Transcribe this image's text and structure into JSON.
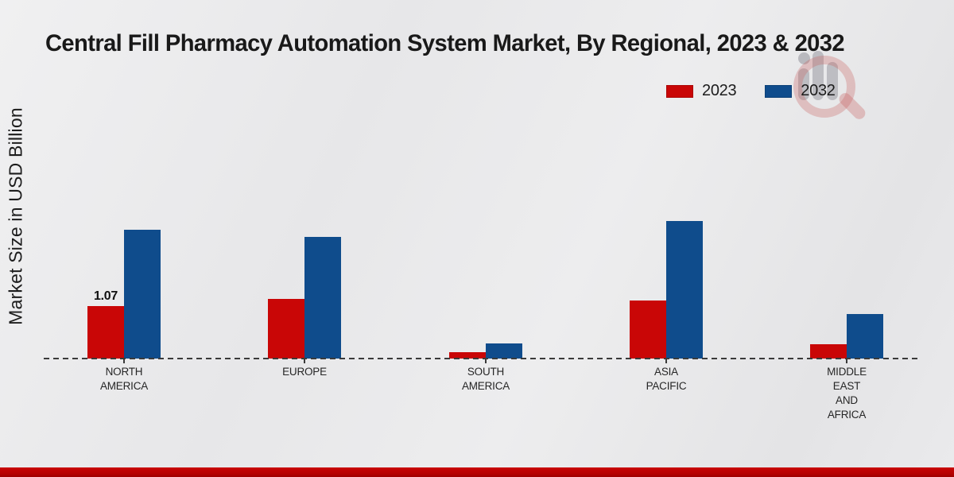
{
  "title": "Central Fill Pharmacy Automation System Market, By Regional, 2023 & 2032",
  "y_axis_label": "Market Size in USD Billion",
  "legend": {
    "position": "top-right",
    "items": [
      {
        "label": "2023",
        "color": "#c90606"
      },
      {
        "label": "2032",
        "color": "#0f4c8c"
      }
    ]
  },
  "watermark": {
    "icon": "magnifier-bar-chart-logo"
  },
  "colors": {
    "series_2023": "#c90606",
    "series_2032": "#0f4c8c",
    "axis": "#3a3a3a",
    "text": "#1c1c1c",
    "bottom_band": "#b30101",
    "background": "#e9e9ea"
  },
  "chart_data": {
    "type": "bar",
    "title": "Central Fill Pharmacy Automation System Market, By Regional, 2023 & 2032",
    "xlabel": "",
    "ylabel": "Market Size in USD Billion",
    "categories": [
      "NORTH AMERICA",
      "EUROPE",
      "SOUTH AMERICA",
      "ASIA PACIFIC",
      "MIDDLE EAST AND AFRICA"
    ],
    "category_lines": [
      [
        "NORTH",
        "AMERICA"
      ],
      [
        "EUROPE"
      ],
      [
        "SOUTH",
        "AMERICA"
      ],
      [
        "ASIA",
        "PACIFIC"
      ],
      [
        "MIDDLE",
        "EAST",
        "AND",
        "AFRICA"
      ]
    ],
    "series": [
      {
        "name": "2023",
        "color": "#c90606",
        "values": [
          1.07,
          1.21,
          0.13,
          1.18,
          0.29
        ]
      },
      {
        "name": "2032",
        "color": "#0f4c8c",
        "values": [
          2.63,
          2.48,
          0.3,
          2.8,
          0.91
        ]
      }
    ],
    "data_labels": [
      {
        "series_index": 0,
        "category_index": 0,
        "text": "1.07"
      }
    ],
    "ylim": [
      0,
      3
    ],
    "grid": false,
    "axis_baseline_style": "dashed",
    "legend_position": "top-right"
  }
}
